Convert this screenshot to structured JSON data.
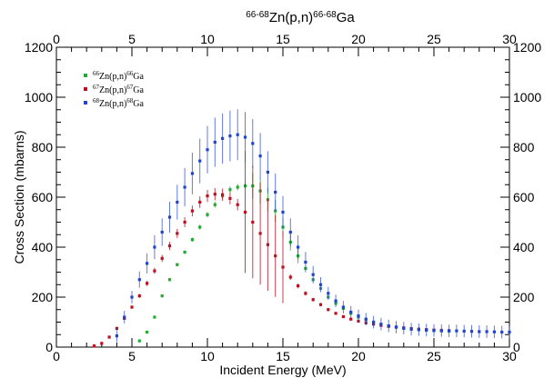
{
  "chart_data": {
    "type": "scatter",
    "title": "66-68Zn(p,n)66-68Ga",
    "xlabel": "Incident Energy (MeV)",
    "ylabel": "Cross Section (mbarns)",
    "xlim": [
      0,
      30
    ],
    "ylim": [
      0,
      1200
    ],
    "x_ticks": [
      "0",
      "5",
      "10",
      "15",
      "20",
      "25",
      "30"
    ],
    "y_ticks": [
      "0",
      "200",
      "400",
      "600",
      "800",
      "1000",
      "1200"
    ],
    "top_axis_ticks": [
      "0",
      "5",
      "10",
      "15",
      "20",
      "25",
      "30"
    ],
    "right_axis_ticks": [
      "0",
      "200",
      "400",
      "600",
      "800",
      "1000",
      "1200"
    ],
    "grid": false,
    "legend_position": "top-left",
    "series": [
      {
        "name": "66Zn(p,n)66Ga",
        "color": "#22aa33",
        "x": [
          5.5,
          6.0,
          6.5,
          7.0,
          7.5,
          8.0,
          8.5,
          9.0,
          9.5,
          10.0,
          10.5,
          11.0,
          11.5,
          12.0,
          12.5,
          13.0,
          13.5,
          14.0,
          14.5,
          15.0,
          15.5,
          16.0,
          16.5,
          17.0,
          17.5,
          18.0,
          18.5,
          19.0,
          19.5,
          20.0,
          20.5,
          21.0,
          21.5,
          22.0,
          22.5,
          23.0,
          23.5,
          24.0,
          24.5,
          25.0,
          25.5,
          26.0
        ],
        "y": [
          25,
          60,
          120,
          205,
          270,
          330,
          380,
          430,
          480,
          530,
          570,
          605,
          630,
          640,
          645,
          645,
          625,
          590,
          545,
          480,
          420,
          365,
          315,
          270,
          235,
          200,
          175,
          155,
          135,
          120,
          110,
          100,
          90,
          85,
          80,
          75,
          72,
          70,
          68,
          66,
          65,
          64
        ]
      },
      {
        "name": "67Zn(p,n)67Ga",
        "color": "#bb1122",
        "x": [
          2.5,
          3.0,
          3.5,
          4.0,
          4.5,
          5.0,
          5.5,
          6.0,
          6.5,
          7.0,
          7.5,
          8.0,
          8.5,
          9.0,
          9.5,
          10.0,
          10.5,
          11.0,
          11.5,
          12.0,
          12.5,
          13.0,
          13.5,
          14.0,
          14.5,
          15.0,
          15.5,
          16.0,
          16.5,
          17.0,
          17.5,
          18.0,
          18.5,
          19.0,
          19.5,
          20.0,
          20.5,
          21.0,
          21.5,
          22.0,
          22.5,
          23.0,
          23.5,
          24.0,
          24.5,
          25.0,
          25.5,
          26.0
        ],
        "y": [
          5,
          15,
          40,
          75,
          115,
          160,
          205,
          255,
          305,
          355,
          405,
          455,
          500,
          545,
          580,
          605,
          612,
          610,
          595,
          570,
          540,
          500,
          455,
          410,
          365,
          320,
          280,
          245,
          215,
          190,
          170,
          150,
          135,
          122,
          112,
          104,
          97,
          92,
          87,
          83,
          80,
          77,
          74,
          72,
          70,
          68,
          67,
          66
        ]
      },
      {
        "name": "68Zn(p,n)68Ga",
        "color": "#2244cc",
        "x": [
          4.0,
          4.5,
          5.0,
          5.5,
          6.0,
          6.5,
          7.0,
          7.5,
          8.0,
          8.5,
          9.0,
          9.5,
          10.0,
          10.5,
          11.0,
          11.5,
          12.0,
          12.5,
          13.0,
          13.5,
          14.0,
          14.5,
          15.0,
          15.5,
          16.0,
          16.5,
          17.0,
          17.5,
          18.0,
          18.5,
          19.0,
          19.5,
          20.0,
          20.5,
          21.0,
          21.5,
          22.0,
          22.5,
          23.0,
          23.5,
          24.0,
          24.5,
          25.0,
          25.5,
          26.0,
          26.5,
          27.0,
          27.5,
          28.0,
          28.5,
          29.0,
          29.5,
          30.0
        ],
        "y": [
          45,
          120,
          200,
          270,
          335,
          400,
          460,
          520,
          580,
          640,
          695,
          745,
          790,
          820,
          835,
          845,
          850,
          840,
          815,
          765,
          700,
          620,
          540,
          460,
          400,
          340,
          290,
          250,
          215,
          185,
          160,
          140,
          125,
          112,
          100,
          92,
          85,
          80,
          76,
          72,
          70,
          68,
          67,
          66,
          65,
          65,
          64,
          63,
          62,
          62,
          61,
          60,
          60
        ]
      }
    ]
  }
}
